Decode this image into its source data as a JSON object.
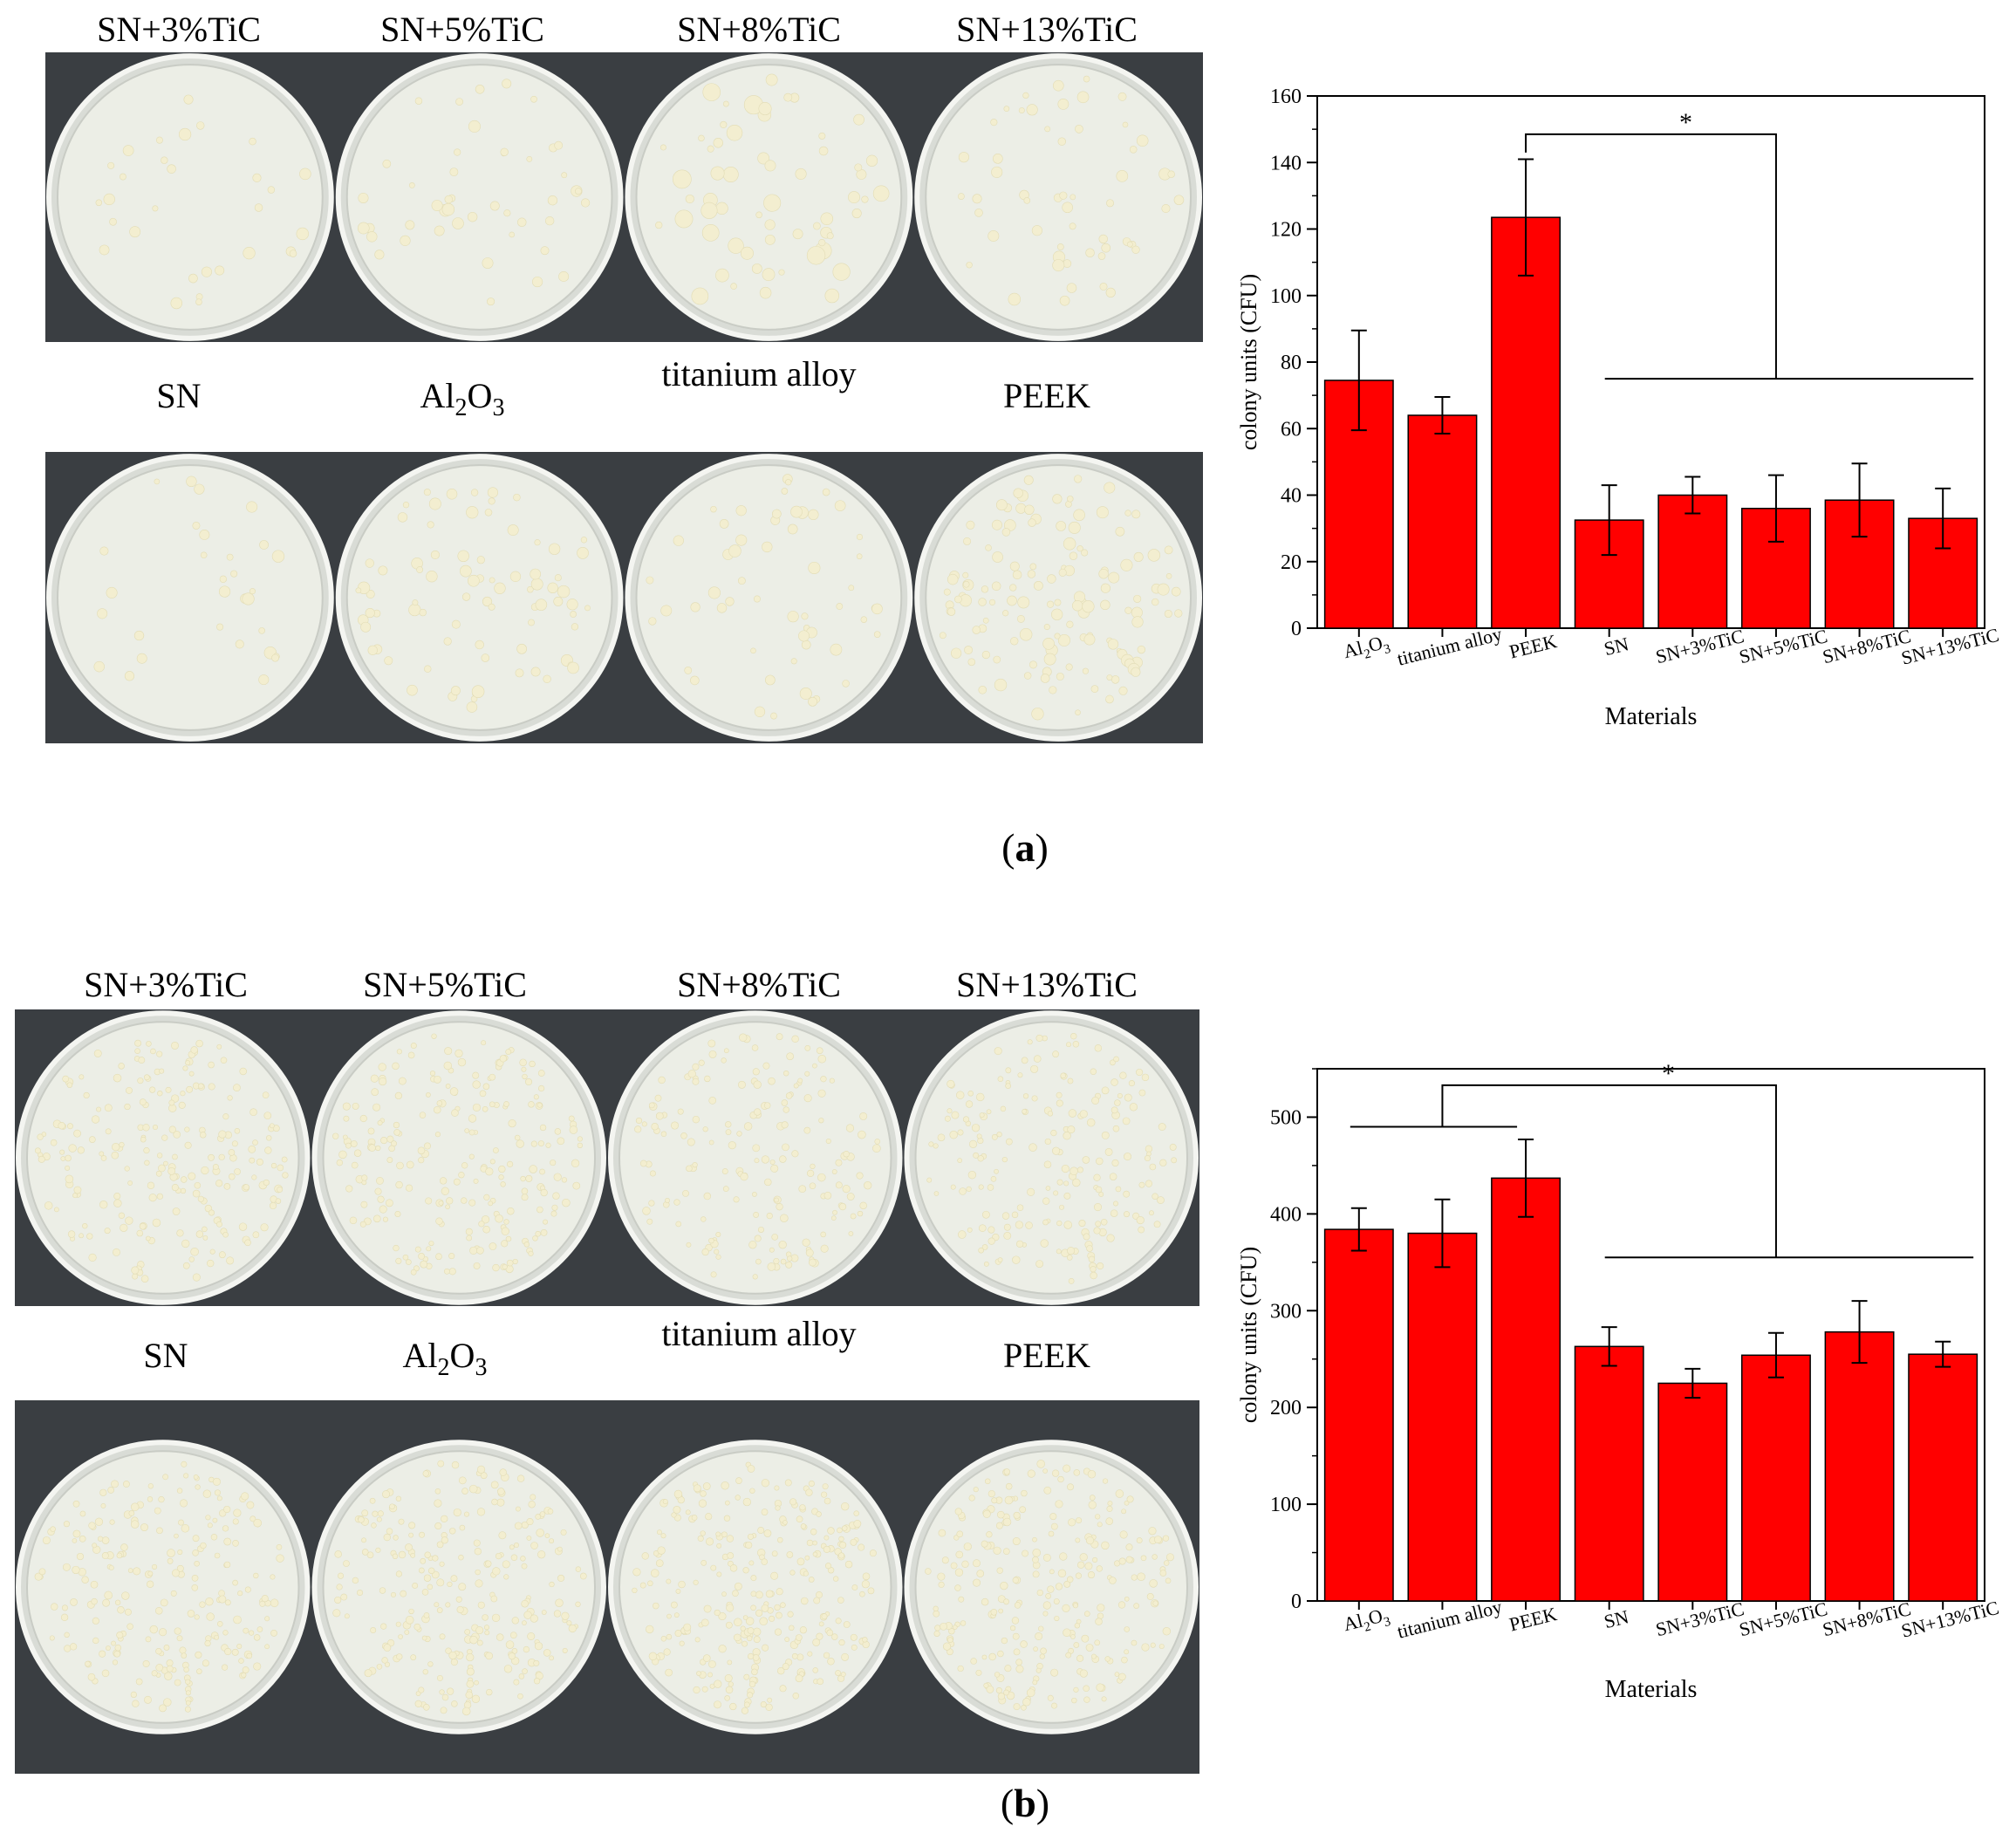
{
  "panels": [
    {
      "id": "a",
      "caption_letter": "a",
      "top_labels": [
        "SN+3%TiC",
        "SN+5%TiC",
        "SN+8%TiC",
        "SN+13%TiC"
      ],
      "bottom_labels": [
        "SN",
        "Al2O3",
        "titanium alloy",
        "PEEK"
      ]
    },
    {
      "id": "b",
      "caption_letter": "b",
      "top_labels": [
        "SN+3%TiC",
        "SN+5%TiC",
        "SN+8%TiC",
        "SN+13%TiC"
      ],
      "bottom_labels": [
        "SN",
        "Al2O3",
        "titanium alloy",
        "PEEK"
      ]
    }
  ],
  "colors": {
    "bar": "#ff0000",
    "photo_bg": "#3a3e42",
    "agar": "#eceee6",
    "colony": "#f3eed0"
  },
  "chart_data": [
    {
      "type": "bar",
      "categories": [
        "Al2O3",
        "titanium alloy",
        "PEEK",
        "SN",
        "SN+3%TiC",
        "SN+5%TiC",
        "SN+8%TiC",
        "SN+13%TiC"
      ],
      "values": [
        74.5,
        64,
        123.5,
        32.5,
        40,
        36,
        38.5,
        33
      ],
      "errors": [
        15,
        5.5,
        17.5,
        10.5,
        5.5,
        10,
        11,
        9
      ],
      "xlabel": "Materials",
      "ylabel": "colony units (CFU)",
      "ylim": [
        0,
        160
      ],
      "yticks": [
        0,
        20,
        40,
        60,
        80,
        100,
        120,
        140,
        160
      ],
      "significance": "*"
    },
    {
      "type": "bar",
      "categories": [
        "Al2O3",
        "titanium alloy",
        "PEEK",
        "SN",
        "SN+3%TiC",
        "SN+5%TiC",
        "SN+8%TiC",
        "SN+13%TiC"
      ],
      "values": [
        384,
        380,
        437,
        263,
        225,
        254,
        278,
        255
      ],
      "errors": [
        22,
        35,
        40,
        20,
        15,
        23,
        32,
        13
      ],
      "xlabel": "Materials",
      "ylabel": "colony units (CFU)",
      "ylim": [
        0,
        550
      ],
      "yticks": [
        0,
        100,
        200,
        300,
        400,
        500
      ],
      "significance": "*"
    }
  ]
}
